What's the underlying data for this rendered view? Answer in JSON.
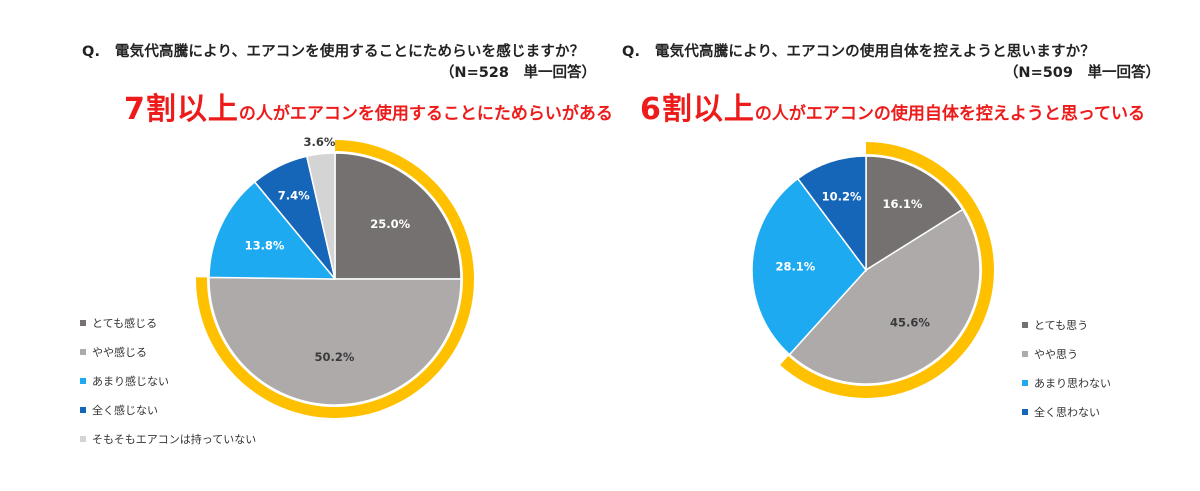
{
  "chart_data": [
    {
      "type": "pie",
      "question": "Q.　電気代高騰により、エアコンを使用することにためらいを感じますか？",
      "n_label": "（N=528　単一回答）",
      "headline": {
        "big": "7割以上",
        "small": "の人がエアコンを使用することにためらいがある"
      },
      "slices": [
        {
          "label": "とても感じる",
          "value": 25.0,
          "value_label": "25.0%",
          "color": "#767171",
          "label_color": "#ffffff"
        },
        {
          "label": "やや感じる",
          "value": 50.2,
          "value_label": "50.2%",
          "color": "#aeaaaa",
          "label_color": "#3a3a3a"
        },
        {
          "label": "あまり感じない",
          "value": 13.8,
          "value_label": "13.8%",
          "color": "#1eaaf1",
          "label_color": "#ffffff"
        },
        {
          "label": "全く感じない",
          "value": 7.4,
          "value_label": "7.4%",
          "color": "#1565b8",
          "label_color": "#ffffff"
        },
        {
          "label": "そもそもエアコンは持っていない",
          "value": 3.6,
          "value_label": "3.6%",
          "color": "#d4d4d4",
          "label_color": "#3a3a3a"
        }
      ],
      "highlight": {
        "covers": [
          "とても感じる",
          "やや感じる"
        ],
        "color": "#ffc000"
      }
    },
    {
      "type": "pie",
      "question": "Q.　電気代高騰により、エアコンの使用自体を控えようと思いますか？",
      "n_label": "（N=509　単一回答）",
      "headline": {
        "big": "6割以上",
        "small": "の人がエアコンの使用自体を控えようと思っている"
      },
      "slices": [
        {
          "label": "とても思う",
          "value": 16.1,
          "value_label": "16.1%",
          "color": "#767171",
          "label_color": "#ffffff"
        },
        {
          "label": "やや思う",
          "value": 45.6,
          "value_label": "45.6%",
          "color": "#aeaaaa",
          "label_color": "#3a3a3a"
        },
        {
          "label": "あまり思わない",
          "value": 28.1,
          "value_label": "28.1%",
          "color": "#1eaaf1",
          "label_color": "#ffffff"
        },
        {
          "label": "全く思わない",
          "value": 10.2,
          "value_label": "10.2%",
          "color": "#1565b8",
          "label_color": "#ffffff"
        }
      ],
      "highlight": {
        "covers": [
          "とても思う",
          "やや思う"
        ],
        "color": "#ffc000"
      }
    }
  ]
}
